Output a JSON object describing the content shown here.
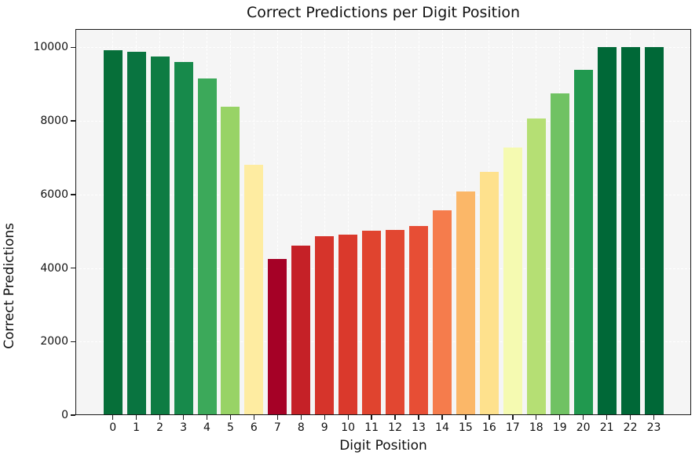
{
  "chart_data": {
    "type": "bar",
    "title": "Correct Predictions per Digit Position",
    "xlabel": "Digit Position",
    "ylabel": "Correct Predictions",
    "categories": [
      "0",
      "1",
      "2",
      "3",
      "4",
      "5",
      "6",
      "7",
      "8",
      "9",
      "10",
      "11",
      "12",
      "13",
      "14",
      "15",
      "16",
      "17",
      "18",
      "19",
      "20",
      "21",
      "22",
      "23"
    ],
    "values": [
      9920,
      9890,
      9760,
      9600,
      9150,
      8390,
      6810,
      4250,
      4620,
      4870,
      4910,
      5020,
      5040,
      5150,
      5560,
      6090,
      6620,
      7280,
      8070,
      8750,
      9390,
      10000,
      10000,
      10000
    ],
    "bar_colors": [
      "#066f39",
      "#097440",
      "#0e7c43",
      "#178a4b",
      "#3ca95a",
      "#98d366",
      "#feeca1",
      "#a50126",
      "#c52127",
      "#d6342b",
      "#da392c",
      "#e0442f",
      "#e24731",
      "#e74e35",
      "#f57c4c",
      "#fbb768",
      "#fee18d",
      "#f5fab1",
      "#b5df74",
      "#70c263",
      "#21994f",
      "#006837",
      "#006837",
      "#006837"
    ],
    "color_scale": "red-yellow-green by value",
    "ylim": [
      0,
      10500
    ],
    "yticks": [
      0,
      2000,
      4000,
      6000,
      8000,
      10000
    ],
    "ytick_labels": [
      "0",
      "2000",
      "4000",
      "6000",
      "8000",
      "10000"
    ],
    "grid": "horizontal and vertical, white dashed, behind bars",
    "legend": "none",
    "plot_bg_color": "#f5f5f5",
    "grid_color": "#ffffff",
    "spine_color": "#1a1a1a",
    "text_color": "#111111"
  }
}
